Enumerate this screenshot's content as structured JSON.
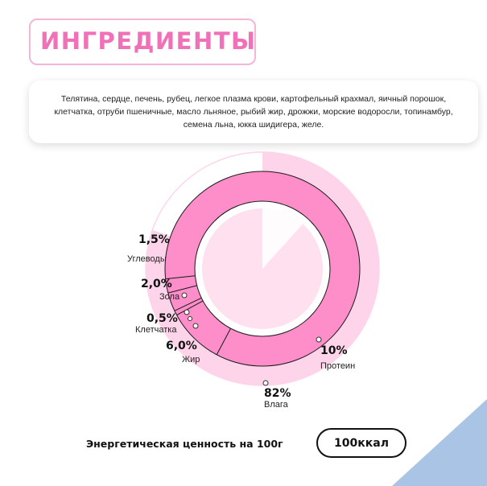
{
  "header": {
    "title": "ИНГРЕДИЕНТЫ"
  },
  "ingredients": {
    "text": "Телятина, сердце, печень, рубец, легкое плазма крови, картофельный крахмал, яичный порошок, клетчатка, отруби пшеничные,  масло льняное, рыбий жир, дрожжи, морские водоросли, топинамбур, семена льна, юкка шидигера, желе."
  },
  "energy": {
    "label": "Энергетическая ценность на 100г",
    "value": "100ккал"
  },
  "colors": {
    "accent_pink": "#f071b8",
    "donut_pink": "#fe8ec9",
    "outer_pink": "#fed4ea",
    "center_pink": "#ffe0ef",
    "corner_blue": "#a9c4e4"
  },
  "chart_data": {
    "type": "pie",
    "title": "",
    "categories": [
      "Углеводы",
      "Зола",
      "Клетчатка",
      "Жир",
      "Протеин",
      "Влага"
    ],
    "values": [
      1.5,
      2.0,
      0.5,
      6.0,
      10,
      82
    ],
    "value_labels": [
      "1,5%",
      "2,0%",
      "0,5%",
      "6,0%",
      "10%",
      "82%"
    ],
    "legend": "none"
  }
}
